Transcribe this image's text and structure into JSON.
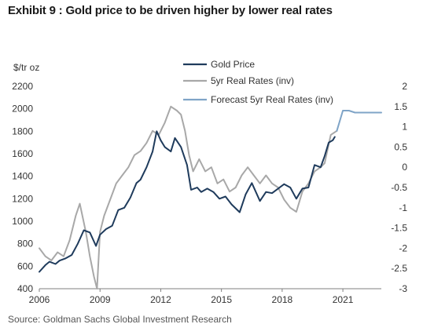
{
  "header": {
    "title": "Exhibit 9 : Gold price to be driven higher by lower real rates",
    "unit_label": "$/tr oz",
    "source": "Source: Goldman Sachs Global Investment Research"
  },
  "chart_data": {
    "type": "line",
    "title": "Exhibit 9 : Gold price to be driven higher by lower real rates",
    "ylabel": "$/tr oz",
    "xlim": [
      2006,
      2022.9
    ],
    "ylim_left": [
      400,
      2200
    ],
    "ylim_right": [
      -3,
      2
    ],
    "x_ticks": [
      2006,
      2009,
      2012,
      2015,
      2018,
      2021
    ],
    "x_tick_labels": [
      "2006",
      "2009",
      "2012",
      "2015",
      "2018",
      "2021"
    ],
    "y_left_ticks": [
      400,
      600,
      800,
      1000,
      1200,
      1400,
      1600,
      1800,
      2000,
      2200
    ],
    "y_left_tick_labels": [
      "400",
      "600",
      "800",
      "1000",
      "1200",
      "1400",
      "1600",
      "1800",
      "2000",
      "2200"
    ],
    "y_right_ticks": [
      -3,
      -2.5,
      -2,
      -1.5,
      -1,
      -0.5,
      0,
      0.5,
      1,
      1.5,
      2
    ],
    "y_right_tick_labels": [
      "-3",
      "-2.5",
      "-2",
      "-1.5",
      "-1",
      "-0.5",
      "0",
      "0.5",
      "1",
      "1.5",
      "2"
    ],
    "legend_position": "top-center",
    "grid": false,
    "series": [
      {
        "name": "Gold Price",
        "axis": "left",
        "color": "#1f3b5c",
        "x": [
          2006.0,
          2006.3,
          2006.5,
          2006.8,
          2007.0,
          2007.3,
          2007.6,
          2007.9,
          2008.2,
          2008.5,
          2008.8,
          2009.0,
          2009.3,
          2009.6,
          2009.9,
          2010.2,
          2010.5,
          2010.8,
          2011.0,
          2011.3,
          2011.6,
          2011.8,
          2012.0,
          2012.2,
          2012.5,
          2012.7,
          2013.0,
          2013.3,
          2013.5,
          2013.8,
          2014.0,
          2014.3,
          2014.6,
          2014.9,
          2015.2,
          2015.5,
          2015.9,
          2016.2,
          2016.5,
          2016.9,
          2017.2,
          2017.5,
          2017.8,
          2018.1,
          2018.4,
          2018.7,
          2019.0,
          2019.3,
          2019.6,
          2019.9,
          2020.1,
          2020.3,
          2020.5,
          2020.6
        ],
        "values": [
          550,
          610,
          640,
          620,
          650,
          670,
          700,
          800,
          920,
          900,
          780,
          880,
          930,
          960,
          1100,
          1120,
          1210,
          1340,
          1370,
          1480,
          1620,
          1800,
          1720,
          1660,
          1620,
          1740,
          1660,
          1500,
          1280,
          1300,
          1260,
          1290,
          1260,
          1200,
          1220,
          1150,
          1080,
          1240,
          1340,
          1180,
          1260,
          1250,
          1290,
          1330,
          1300,
          1200,
          1290,
          1300,
          1500,
          1480,
          1580,
          1700,
          1720,
          1750
        ]
      },
      {
        "name": "5yr Real Rates (inv)",
        "axis": "right",
        "color": "#a8a8a8",
        "x": [
          2006.0,
          2006.3,
          2006.6,
          2006.9,
          2007.2,
          2007.5,
          2007.8,
          2008.0,
          2008.3,
          2008.5,
          2008.7,
          2008.85,
          2009.0,
          2009.2,
          2009.5,
          2009.8,
          2010.1,
          2010.4,
          2010.7,
          2011.0,
          2011.3,
          2011.6,
          2011.9,
          2012.2,
          2012.5,
          2012.8,
          2013.0,
          2013.2,
          2013.4,
          2013.6,
          2013.9,
          2014.2,
          2014.5,
          2014.8,
          2015.1,
          2015.4,
          2015.7,
          2016.0,
          2016.3,
          2016.6,
          2016.9,
          2017.2,
          2017.5,
          2017.8,
          2018.1,
          2018.4,
          2018.7,
          2019.0,
          2019.3,
          2019.6,
          2019.9,
          2020.1,
          2020.4,
          2020.7
        ],
        "values": [
          -2.0,
          -2.2,
          -2.3,
          -2.1,
          -2.2,
          -1.8,
          -1.2,
          -0.9,
          -1.6,
          -2.2,
          -2.7,
          -3.0,
          -1.6,
          -1.2,
          -0.8,
          -0.4,
          -0.2,
          0.0,
          0.3,
          0.4,
          0.6,
          0.9,
          0.8,
          1.1,
          1.5,
          1.4,
          1.3,
          0.9,
          0.3,
          -0.1,
          0.2,
          -0.1,
          0.0,
          -0.4,
          -0.3,
          -0.6,
          -0.5,
          -0.2,
          0.0,
          -0.2,
          -0.4,
          -0.2,
          -0.4,
          -0.5,
          -0.8,
          -1.0,
          -1.1,
          -0.6,
          -0.4,
          -0.1,
          0.0,
          0.1,
          0.8,
          0.9
        ]
      },
      {
        "name": "Forecast 5yr Real Rates (inv)",
        "axis": "right",
        "color": "#7fa4c7",
        "x": [
          2020.7,
          2021.0,
          2021.3,
          2021.6,
          2021.9,
          2022.2,
          2022.5,
          2022.9
        ],
        "values": [
          0.9,
          1.4,
          1.4,
          1.35,
          1.35,
          1.35,
          1.35,
          1.35
        ]
      }
    ]
  }
}
